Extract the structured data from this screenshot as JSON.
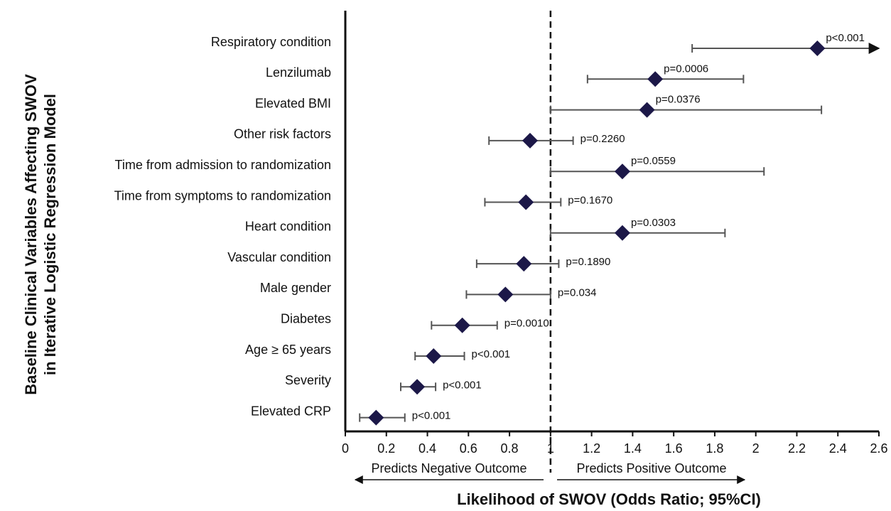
{
  "chart_data": {
    "type": "forest",
    "ylabel": [
      "Baseline Clinical Variables Affecting SWOV",
      "in Iterative Logistic Regression Model"
    ],
    "xlabel": "Likelihood of SWOV (Odds Ratio; 95%CI)",
    "annotations": [
      "Predicts Negative Outcome",
      "Predicts Positive Outcome"
    ],
    "reference_line": 1,
    "categories": [
      "Respiratory condition",
      "Lenzilumab",
      "Elevated BMI",
      "Other risk factors",
      "Time from admission to randomization",
      "Time from symptoms to randomization",
      "Heart condition",
      "Vascular condition",
      "Male gender",
      "Diabetes",
      "Age ≥ 65 years",
      "Severity",
      "Elevated CRP"
    ],
    "values": [
      2.3,
      1.51,
      1.47,
      0.9,
      1.35,
      0.88,
      1.35,
      0.87,
      0.78,
      0.57,
      0.43,
      0.35,
      0.15
    ],
    "ci_low": [
      1.69,
      1.18,
      1.0,
      0.7,
      1.0,
      0.68,
      1.0,
      0.64,
      0.59,
      0.42,
      0.34,
      0.27,
      0.07
    ],
    "ci_high": [
      2.6,
      1.94,
      2.32,
      1.11,
      2.04,
      1.05,
      1.85,
      1.04,
      1.0,
      0.74,
      0.58,
      0.44,
      0.29
    ],
    "p_values": [
      "p<0.001",
      "p=0.0006",
      "p=0.0376",
      "p=0.2260",
      "p=0.0559",
      "p=0.1670",
      "p=0.0303",
      "p=0.1890",
      "p=0.034",
      "p=0.0010",
      "p<0.001",
      "p<0.001",
      "p<0.001"
    ],
    "color": "#1c1848",
    "xlim": [
      0,
      2.6
    ],
    "xticks": [
      0,
      0.2,
      0.4,
      0.6,
      0.8,
      1,
      1.2,
      1.4,
      1.6,
      1.8,
      2,
      2.2,
      2.4,
      2.6
    ]
  }
}
